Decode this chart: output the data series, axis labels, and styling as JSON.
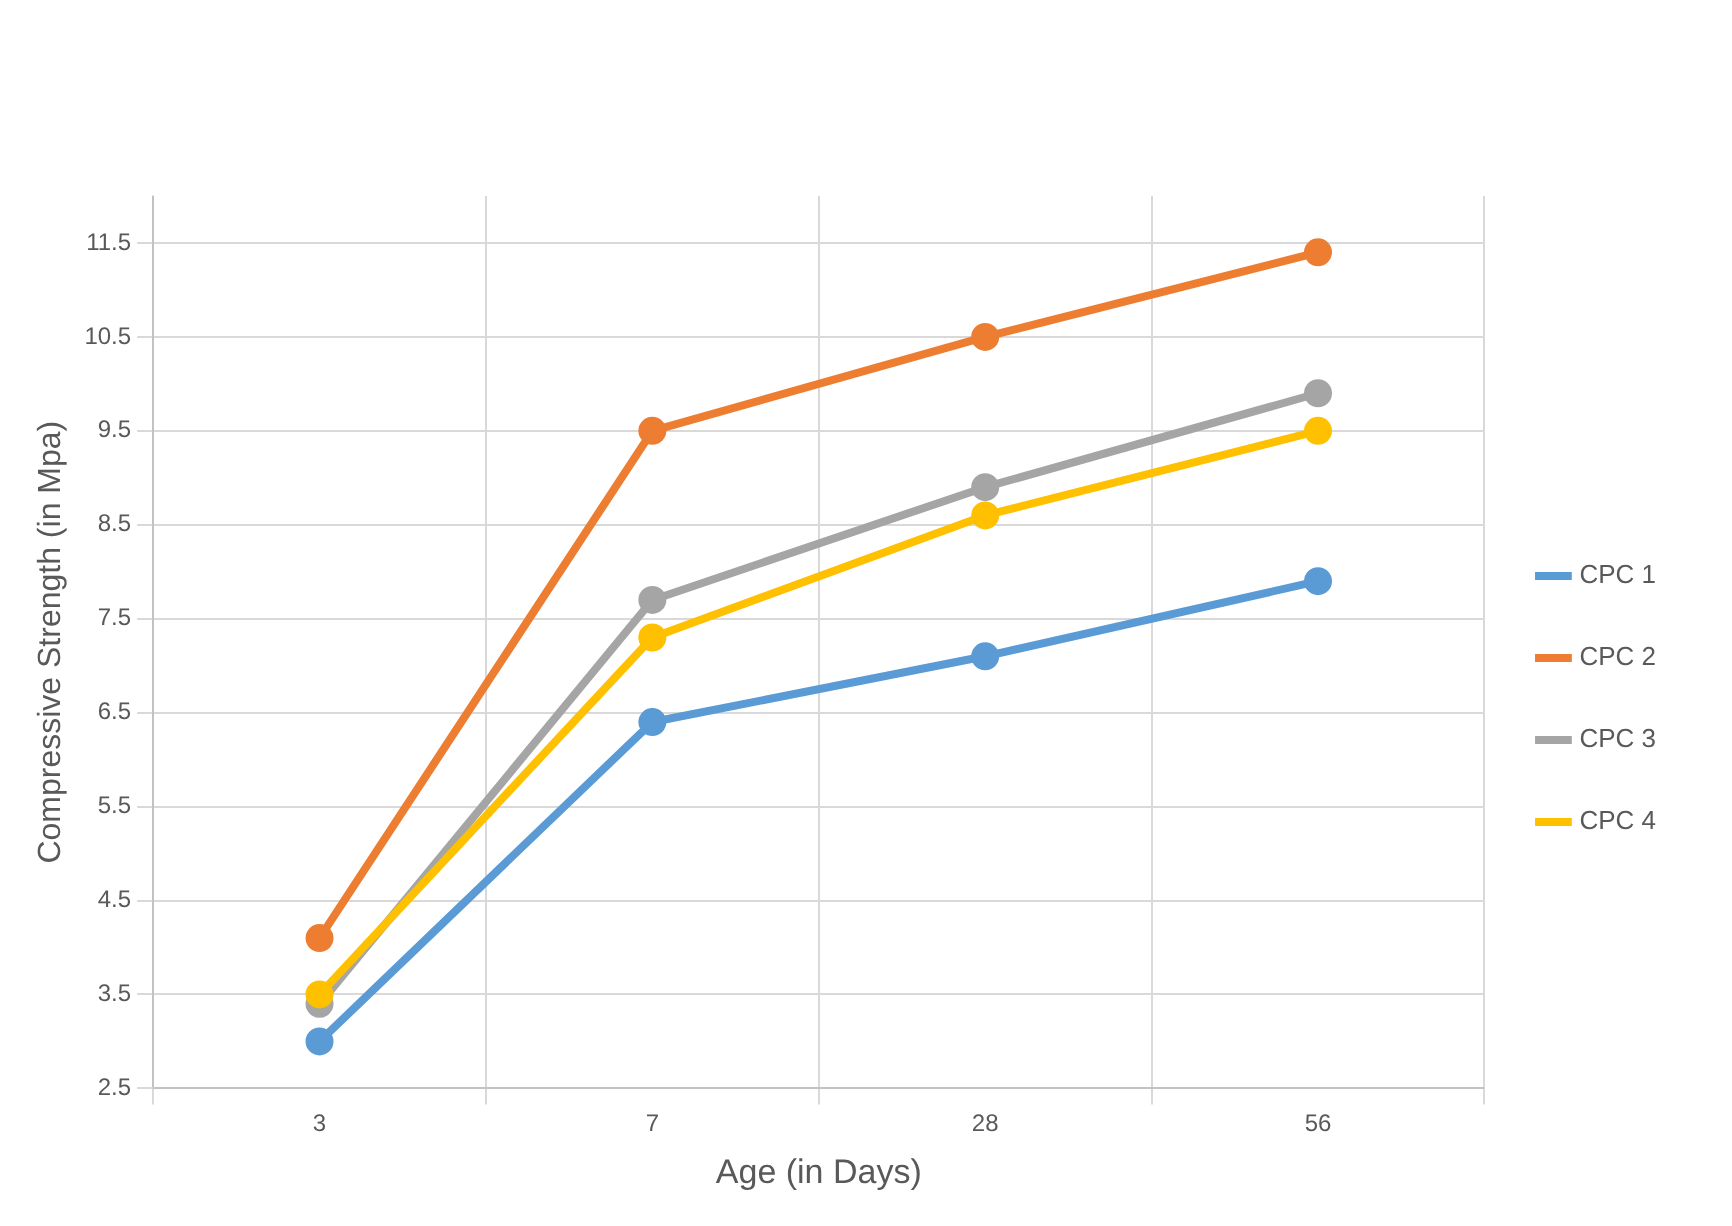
{
  "chart_data": {
    "type": "line",
    "xlabel": "Age (in Days)",
    "ylabel": "Compressive Strength (in Mpa)",
    "categories": [
      "3",
      "7",
      "28",
      "56"
    ],
    "series": [
      {
        "name": "CPC 1",
        "color": "#5b9bd5",
        "values": [
          3.0,
          6.4,
          7.1,
          7.9
        ]
      },
      {
        "name": "CPC 2",
        "color": "#ed7d31",
        "values": [
          4.1,
          9.5,
          10.5,
          11.4
        ]
      },
      {
        "name": "CPC 3",
        "color": "#a5a5a5",
        "values": [
          3.4,
          7.7,
          8.9,
          9.9
        ]
      },
      {
        "name": "CPC 4",
        "color": "#ffc000",
        "values": [
          3.5,
          7.3,
          8.6,
          9.5
        ]
      }
    ],
    "ylim": [
      2.5,
      12.0
    ],
    "yticks": [
      2.5,
      3.5,
      4.5,
      5.5,
      6.5,
      7.5,
      8.5,
      9.5,
      10.5,
      11.5
    ],
    "grid": true,
    "legend": "right",
    "marker": "circle",
    "line_style": "solid"
  }
}
